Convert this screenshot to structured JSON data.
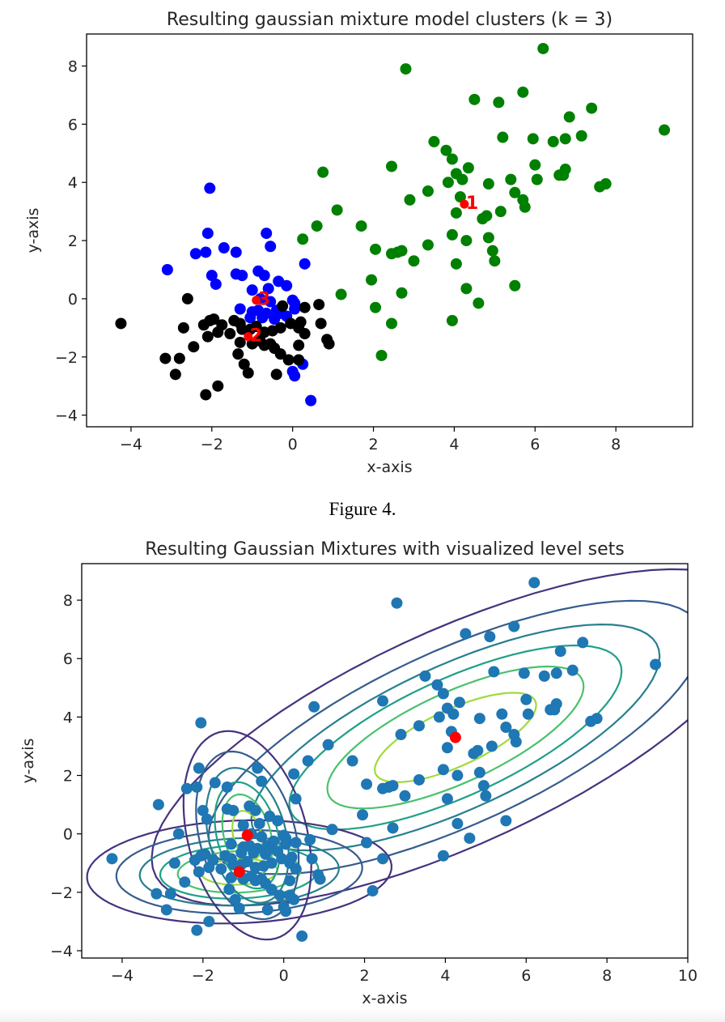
{
  "figure_caption": "Figure 4.",
  "chart_data": [
    {
      "type": "scatter",
      "title": "Resulting gaussian mixture model clusters (k = 3)",
      "xlabel": "x-axis",
      "ylabel": "y-axis",
      "xlim": [
        -5.1,
        9.9
      ],
      "ylim": [
        -4.4,
        9.1
      ],
      "xticks": [
        -4,
        -2,
        0,
        2,
        4,
        6,
        8
      ],
      "yticks": [
        -4,
        -2,
        0,
        2,
        4,
        6,
        8
      ],
      "series": [
        {
          "color": "#008000",
          "points": [
            [
              6.2,
              8.6
            ],
            [
              2.8,
              7.9
            ],
            [
              4.5,
              6.85
            ],
            [
              5.1,
              6.75
            ],
            [
              5.7,
              7.1
            ],
            [
              7.4,
              6.55
            ],
            [
              6.85,
              6.25
            ],
            [
              9.2,
              5.8
            ],
            [
              5.2,
              5.55
            ],
            [
              5.95,
              5.5
            ],
            [
              6.45,
              5.4
            ],
            [
              6.75,
              5.5
            ],
            [
              7.15,
              5.6
            ],
            [
              3.5,
              5.4
            ],
            [
              3.8,
              5.1
            ],
            [
              3.95,
              4.8
            ],
            [
              4.35,
              4.5
            ],
            [
              2.45,
              4.55
            ],
            [
              6.0,
              4.6
            ],
            [
              0.75,
              4.35
            ],
            [
              4.05,
              4.3
            ],
            [
              4.2,
              4.1
            ],
            [
              5.4,
              4.1
            ],
            [
              6.05,
              4.1
            ],
            [
              6.6,
              4.25
            ],
            [
              6.75,
              4.45
            ],
            [
              6.7,
              4.25
            ],
            [
              3.85,
              4.0
            ],
            [
              4.85,
              3.95
            ],
            [
              7.6,
              3.85
            ],
            [
              7.75,
              3.95
            ],
            [
              3.35,
              3.7
            ],
            [
              5.5,
              3.65
            ],
            [
              5.7,
              3.4
            ],
            [
              4.15,
              3.5
            ],
            [
              2.9,
              3.4
            ],
            [
              5.75,
              3.15
            ],
            [
              1.1,
              3.05
            ],
            [
              4.05,
              2.95
            ],
            [
              4.7,
              2.75
            ],
            [
              4.8,
              2.85
            ],
            [
              5.15,
              3.0
            ],
            [
              1.7,
              2.5
            ],
            [
              0.6,
              2.5
            ],
            [
              3.95,
              2.2
            ],
            [
              4.3,
              2.0
            ],
            [
              4.85,
              2.1
            ],
            [
              0.25,
              2.05
            ],
            [
              3.35,
              1.85
            ],
            [
              2.05,
              1.7
            ],
            [
              2.45,
              1.55
            ],
            [
              2.6,
              1.6
            ],
            [
              2.7,
              1.65
            ],
            [
              4.95,
              1.65
            ],
            [
              3.0,
              1.3
            ],
            [
              4.05,
              1.2
            ],
            [
              5.0,
              1.3
            ],
            [
              1.95,
              0.65
            ],
            [
              5.5,
              0.45
            ],
            [
              4.3,
              0.35
            ],
            [
              1.2,
              0.15
            ],
            [
              2.7,
              0.2
            ],
            [
              4.6,
              -0.15
            ],
            [
              2.05,
              -0.3
            ],
            [
              3.95,
              -0.75
            ],
            [
              2.45,
              -0.85
            ],
            [
              2.2,
              -1.95
            ]
          ]
        },
        {
          "color": "#0000ff",
          "points": [
            [
              -2.05,
              3.8
            ],
            [
              -2.1,
              2.25
            ],
            [
              -0.65,
              2.25
            ],
            [
              -0.55,
              1.8
            ],
            [
              -1.7,
              1.75
            ],
            [
              -2.4,
              1.55
            ],
            [
              -2.15,
              1.6
            ],
            [
              -1.4,
              1.6
            ],
            [
              0.3,
              1.2
            ],
            [
              -3.1,
              1.0
            ],
            [
              -2.0,
              0.8
            ],
            [
              -1.4,
              0.85
            ],
            [
              -1.25,
              0.8
            ],
            [
              -0.85,
              0.95
            ],
            [
              -0.7,
              0.8
            ],
            [
              -1.9,
              0.5
            ],
            [
              -0.35,
              0.6
            ],
            [
              -0.15,
              0.45
            ],
            [
              -1.0,
              0.3
            ],
            [
              -0.6,
              0.35
            ],
            [
              -0.8,
              0.0
            ],
            [
              -0.55,
              -0.1
            ],
            [
              0.0,
              -0.05
            ],
            [
              0.05,
              -0.15
            ],
            [
              -1.3,
              -0.35
            ],
            [
              -0.85,
              -0.4
            ],
            [
              -0.65,
              -0.5
            ],
            [
              -0.4,
              -0.4
            ],
            [
              -0.3,
              -0.5
            ],
            [
              0.05,
              -0.35
            ],
            [
              -1.0,
              -0.45
            ],
            [
              -0.45,
              -0.7
            ],
            [
              -0.15,
              -0.6
            ],
            [
              -0.75,
              -0.65
            ],
            [
              -1.05,
              -0.65
            ],
            [
              0.25,
              -2.25
            ],
            [
              0.0,
              -2.5
            ],
            [
              0.05,
              -2.65
            ],
            [
              0.45,
              -3.5
            ]
          ]
        },
        {
          "color": "#000000",
          "points": [
            [
              -2.6,
              0.0
            ],
            [
              -0.25,
              -0.25
            ],
            [
              0.3,
              -0.3
            ],
            [
              0.65,
              -0.2
            ],
            [
              -4.25,
              -0.85
            ],
            [
              -2.7,
              -1.0
            ],
            [
              -2.2,
              -0.9
            ],
            [
              -2.05,
              -0.75
            ],
            [
              -1.95,
              -0.7
            ],
            [
              -1.75,
              -0.9
            ],
            [
              -1.45,
              -0.75
            ],
            [
              -1.3,
              -0.85
            ],
            [
              -1.55,
              -1.2
            ],
            [
              -1.25,
              -1.05
            ],
            [
              -1.05,
              -1.05
            ],
            [
              -0.9,
              -0.95
            ],
            [
              -0.7,
              -1.15
            ],
            [
              -0.5,
              -1.1
            ],
            [
              -0.3,
              -1.0
            ],
            [
              -0.05,
              -0.85
            ],
            [
              0.15,
              -1.0
            ],
            [
              0.2,
              -0.8
            ],
            [
              0.3,
              -1.2
            ],
            [
              0.7,
              -0.85
            ],
            [
              0.85,
              -1.4
            ],
            [
              0.9,
              -1.55
            ],
            [
              -2.45,
              -1.65
            ],
            [
              -2.1,
              -1.3
            ],
            [
              -1.85,
              -1.15
            ],
            [
              -1.3,
              -1.5
            ],
            [
              -1.0,
              -1.55
            ],
            [
              -0.7,
              -1.6
            ],
            [
              -0.45,
              -1.7
            ],
            [
              -0.8,
              -1.45
            ],
            [
              -0.55,
              -1.55
            ],
            [
              -0.3,
              -1.9
            ],
            [
              0.15,
              -1.6
            ],
            [
              -0.1,
              -2.1
            ],
            [
              0.15,
              -2.1
            ],
            [
              -3.15,
              -2.05
            ],
            [
              -2.8,
              -2.05
            ],
            [
              -1.35,
              -1.9
            ],
            [
              -1.2,
              -2.25
            ],
            [
              -1.1,
              -2.55
            ],
            [
              -0.4,
              -2.6
            ],
            [
              -2.9,
              -2.6
            ],
            [
              -1.85,
              -3.0
            ],
            [
              -2.15,
              -3.3
            ]
          ]
        }
      ],
      "centroids": [
        {
          "label": "1",
          "x": 4.25,
          "y": 3.25,
          "color": "#ff0000"
        },
        {
          "label": "2",
          "x": -1.1,
          "y": -1.3,
          "color": "#ff0000"
        },
        {
          "label": "3",
          "x": -0.9,
          "y": -0.05,
          "color": "#ff0000"
        }
      ],
      "grid": false
    },
    {
      "type": "scatter",
      "title": "Resulting Gaussian Mixtures with visualized level sets",
      "xlabel": "x-axis",
      "ylabel": "y-axis",
      "xlim": [
        -5.0,
        10.0
      ],
      "ylim": [
        -4.25,
        9.25
      ],
      "xticks": [
        -4,
        -2,
        0,
        2,
        4,
        6,
        8,
        10
      ],
      "yticks": [
        -4,
        -2,
        0,
        2,
        4,
        6,
        8
      ],
      "point_color": "#1f77b4",
      "centroid_color": "#ff0000",
      "centroids": [
        [
          4.25,
          3.3
        ],
        [
          -1.1,
          -1.3
        ],
        [
          -0.9,
          -0.05
        ]
      ],
      "contour_colors": [
        "#46327e",
        "#365c8d",
        "#277f8e",
        "#1fa187",
        "#4ac16d",
        "#a0da39"
      ],
      "level_sets": [
        {
          "cx": 4.25,
          "cy": 3.3,
          "sx": 2.35,
          "sy": 1.8,
          "corr": 0.72,
          "levels": [
            3.2,
            2.6,
            2.15,
            1.75,
            1.35,
            0.85
          ]
        },
        {
          "cx": -1.1,
          "cy": -1.3,
          "sx": 1.45,
          "sy": 0.68,
          "corr": 0.1,
          "levels": [
            2.6,
            2.1,
            1.7,
            1.35,
            1.05,
            0.65
          ]
        },
        {
          "cx": -0.9,
          "cy": -0.05,
          "sx": 0.62,
          "sy": 1.4,
          "corr": -0.3,
          "levels": [
            2.55,
            2.05,
            1.65,
            1.3,
            1.0,
            0.6
          ]
        }
      ],
      "grid": false
    }
  ]
}
